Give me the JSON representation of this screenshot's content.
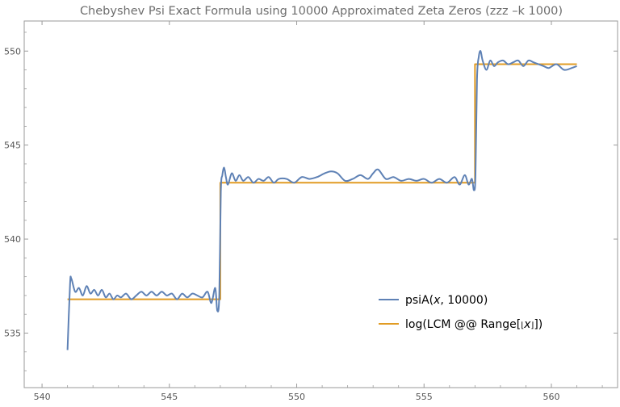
{
  "chart_data": {
    "type": "line",
    "title": "Chebyshev Psi Exact Formula using 10000 Approximated Zeta Zeros (zzz –k 1000)",
    "xlabel": "",
    "ylabel": "",
    "xlim": [
      539.3,
      562.6
    ],
    "ylim": [
      532.1,
      551.6
    ],
    "xticks": [
      540,
      545,
      550,
      555,
      560
    ],
    "yticks": [
      535,
      540,
      545,
      550
    ],
    "xtick_labels": [
      "540",
      "545",
      "550",
      "555",
      "560"
    ],
    "ytick_labels": [
      "535",
      "540",
      "545",
      "550"
    ],
    "grid": false,
    "legend_position": "bottom-right",
    "colors": {
      "psiA": "#5e81b5",
      "lcm": "#e19c24",
      "axis": "#9a9a9a"
    },
    "series": [
      {
        "name": "psiA(x, 10000)",
        "legend_parts": [
          "psiA(",
          "x",
          ", 10000)"
        ],
        "kind": "oscillating",
        "x": [
          541,
          541.1,
          541.15,
          541.3,
          541.45,
          541.6,
          541.75,
          541.9,
          542.05,
          542.2,
          542.35,
          542.5,
          542.65,
          542.8,
          542.95,
          543.1,
          543.3,
          543.5,
          543.7,
          543.9,
          544.1,
          544.3,
          544.5,
          544.7,
          544.9,
          545.1,
          545.3,
          545.5,
          545.7,
          545.9,
          546.1,
          546.3,
          546.5,
          546.65,
          546.8,
          546.88,
          546.96,
          547.02,
          547.08,
          547.15,
          547.22,
          547.3,
          547.45,
          547.6,
          547.75,
          547.9,
          548.1,
          548.3,
          548.5,
          548.7,
          548.9,
          549.1,
          549.3,
          549.6,
          549.9,
          550.2,
          550.5,
          550.8,
          551.1,
          551.35,
          551.6,
          551.9,
          552.2,
          552.5,
          552.8,
          553.0,
          553.2,
          553.5,
          553.8,
          554.1,
          554.4,
          554.7,
          555.0,
          555.3,
          555.6,
          555.9,
          556.2,
          556.4,
          556.6,
          556.75,
          556.88,
          556.96,
          557.02,
          557.08,
          557.15,
          557.22,
          557.3,
          557.45,
          557.6,
          557.75,
          557.9,
          558.1,
          558.3,
          558.5,
          558.7,
          558.9,
          559.1,
          559.3,
          559.5,
          559.7,
          559.9,
          560.2,
          560.5,
          560.8,
          561
        ],
        "y": [
          534.1,
          537.6,
          537.9,
          537.2,
          537.4,
          537.0,
          537.5,
          537.1,
          537.3,
          537.0,
          537.3,
          536.9,
          537.1,
          536.8,
          537.0,
          536.9,
          537.1,
          536.8,
          537.0,
          537.2,
          537.0,
          537.2,
          537.0,
          537.2,
          537.0,
          537.1,
          536.8,
          537.1,
          536.9,
          537.1,
          537.0,
          536.9,
          537.2,
          536.6,
          537.4,
          536.2,
          537.0,
          542.5,
          543.4,
          543.8,
          543.3,
          542.9,
          543.5,
          543.1,
          543.4,
          543.1,
          543.3,
          543.0,
          543.2,
          543.1,
          543.3,
          543.0,
          543.2,
          543.2,
          543.0,
          543.3,
          543.2,
          543.3,
          543.5,
          543.6,
          543.5,
          543.1,
          543.2,
          543.4,
          543.2,
          543.5,
          543.7,
          543.2,
          543.3,
          543.1,
          543.2,
          543.1,
          543.2,
          543.0,
          543.2,
          543.0,
          543.3,
          542.9,
          543.4,
          542.9,
          543.2,
          542.6,
          543.4,
          548.5,
          549.7,
          550.0,
          549.5,
          549.0,
          549.5,
          549.2,
          549.4,
          549.5,
          549.3,
          549.4,
          549.5,
          549.2,
          549.5,
          549.4,
          549.3,
          549.2,
          549.1,
          549.3,
          549.0,
          549.1,
          549.2
        ]
      },
      {
        "name": "log(LCM @@ Range[⌊x⌋])",
        "legend_parts": [
          "log(LCM @@ Range[",
          "⌊",
          "x",
          "⌋",
          "])"
        ],
        "kind": "step",
        "x": [
          541,
          547,
          547,
          557,
          557,
          561
        ],
        "y": [
          536.8,
          536.8,
          543.0,
          543.0,
          549.3,
          549.3
        ]
      }
    ]
  }
}
